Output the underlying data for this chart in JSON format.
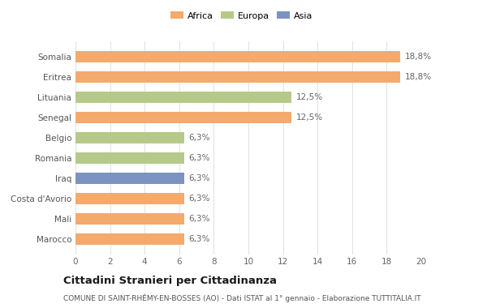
{
  "categories": [
    "Somalia",
    "Eritrea",
    "Lituania",
    "Senegal",
    "Belgio",
    "Romania",
    "Iraq",
    "Costa d'Avorio",
    "Mali",
    "Marocco"
  ],
  "values": [
    18.8,
    18.8,
    12.5,
    12.5,
    6.3,
    6.3,
    6.3,
    6.3,
    6.3,
    6.3
  ],
  "labels": [
    "18,8%",
    "18,8%",
    "12,5%",
    "12,5%",
    "6,3%",
    "6,3%",
    "6,3%",
    "6,3%",
    "6,3%",
    "6,3%"
  ],
  "colors": [
    "#F4A96D",
    "#F4A96D",
    "#B5C98A",
    "#F4A96D",
    "#B5C98A",
    "#B5C98A",
    "#7B93C0",
    "#F4A96D",
    "#F4A96D",
    "#F4A96D"
  ],
  "legend": [
    {
      "label": "Africa",
      "color": "#F4A96D"
    },
    {
      "label": "Europa",
      "color": "#B5C98A"
    },
    {
      "label": "Asia",
      "color": "#7B93C0"
    }
  ],
  "xlim": [
    0,
    20
  ],
  "xticks": [
    0,
    2,
    4,
    6,
    8,
    10,
    12,
    14,
    16,
    18,
    20
  ],
  "title": "Cittadini Stranieri per Cittadinanza",
  "subtitle": "COMUNE DI SAINT-RHÉMY-EN-BOSSES (AO) - Dati ISTAT al 1° gennaio - Elaborazione TUTTITALIA.IT",
  "bg_color": "#FFFFFF",
  "grid_color": "#DDDDDD",
  "bar_height": 0.55,
  "label_fontsize": 7.5,
  "tick_fontsize": 7.5,
  "ytick_fontsize": 7.5,
  "title_fontsize": 9.5,
  "subtitle_fontsize": 6.5,
  "legend_fontsize": 8.0
}
